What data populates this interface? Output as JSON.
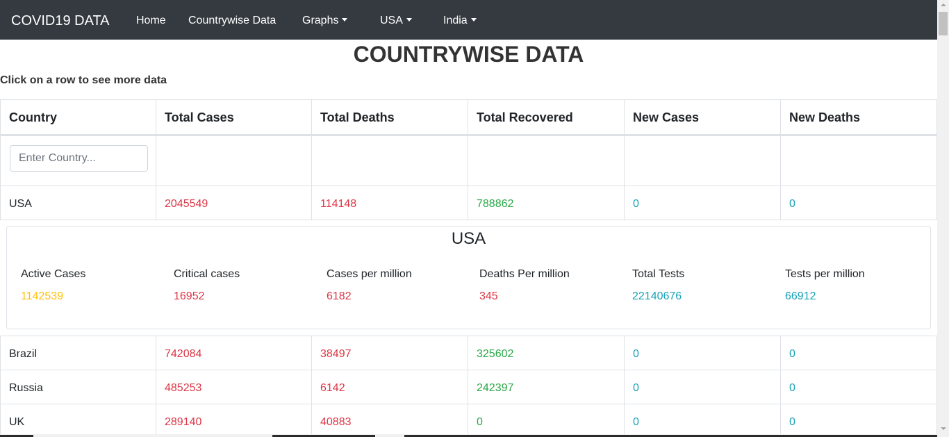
{
  "nav": {
    "brand": "COVID19 DATA",
    "items": [
      {
        "label": "Home",
        "dropdown": false
      },
      {
        "label": "Countrywise Data",
        "dropdown": false
      },
      {
        "label": "Graphs",
        "dropdown": true
      },
      {
        "label": "USA",
        "dropdown": true
      },
      {
        "label": "India",
        "dropdown": true
      }
    ]
  },
  "page": {
    "title": "COUNTRYWISE DATA",
    "hint": "Click on a row to see more data"
  },
  "table": {
    "headers": [
      "Country",
      "Total Cases",
      "Total Deaths",
      "Total Recovered",
      "New Cases",
      "New Deaths"
    ],
    "search_placeholder": "Enter Country...",
    "rows": [
      {
        "country": "USA",
        "total_cases": "2045549",
        "total_deaths": "114148",
        "total_recovered": "788862",
        "new_cases": "0",
        "new_deaths": "0"
      },
      {
        "country": "Brazil",
        "total_cases": "742084",
        "total_deaths": "38497",
        "total_recovered": "325602",
        "new_cases": "0",
        "new_deaths": "0"
      },
      {
        "country": "Russia",
        "total_cases": "485253",
        "total_deaths": "6142",
        "total_recovered": "242397",
        "new_cases": "0",
        "new_deaths": "0"
      },
      {
        "country": "UK",
        "total_cases": "289140",
        "total_deaths": "40883",
        "total_recovered": "0",
        "new_cases": "0",
        "new_deaths": "0"
      }
    ]
  },
  "detail": {
    "title": "USA",
    "stats": [
      {
        "label": "Active Cases",
        "value": "1142539"
      },
      {
        "label": "Critical cases",
        "value": "16952"
      },
      {
        "label": "Cases per million",
        "value": "6182"
      },
      {
        "label": "Deaths Per million",
        "value": "345"
      },
      {
        "label": "Total Tests",
        "value": "22140676"
      },
      {
        "label": "Tests per million",
        "value": "66912"
      }
    ]
  },
  "colors": {
    "navbar": "#343a40",
    "cases": "#dc3545",
    "recovered": "#28a745",
    "new": "#17a2b8",
    "active": "#ffc107"
  }
}
